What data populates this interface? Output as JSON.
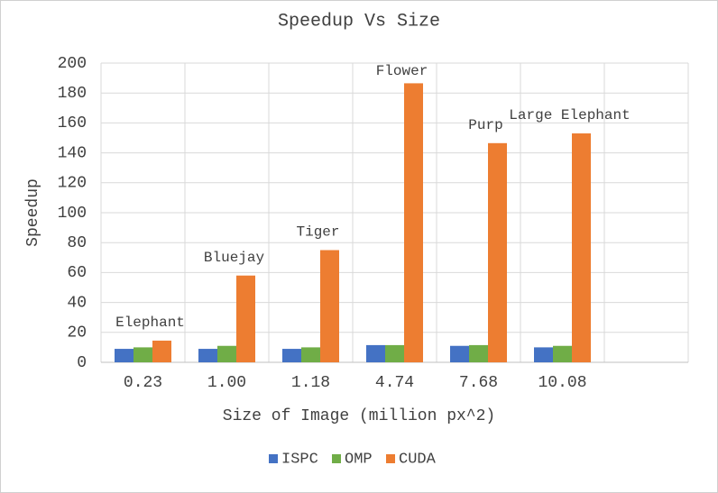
{
  "chart_data": {
    "type": "bar",
    "title": "Speedup Vs Size",
    "x_label": "Size of Image (million px^2)",
    "y_label": "Speedup",
    "categories": [
      "0.23",
      "1.00",
      "1.18",
      "4.74",
      "7.68",
      "10.08",
      null
    ],
    "annotations": [
      "Elephant",
      "Bluejay",
      "Tiger",
      "Flower",
      "Purp",
      "Large Elephant",
      null
    ],
    "series": [
      {
        "name": "ISPC",
        "color": "#4472c4",
        "values": [
          9,
          9,
          9,
          11.5,
          11,
          10,
          null
        ]
      },
      {
        "name": "OMP",
        "color": "#70ad47",
        "values": [
          10,
          11,
          10,
          11.5,
          11.5,
          11,
          null
        ]
      },
      {
        "name": "CUDA",
        "color": "#ed7d31",
        "values": [
          14.5,
          58,
          75,
          186.5,
          146.5,
          153,
          null
        ]
      }
    ],
    "ylim": [
      0,
      200
    ],
    "yticks": [
      0,
      20,
      40,
      60,
      80,
      100,
      120,
      140,
      160,
      180,
      200
    ],
    "grid": true,
    "legend": "bottom"
  }
}
